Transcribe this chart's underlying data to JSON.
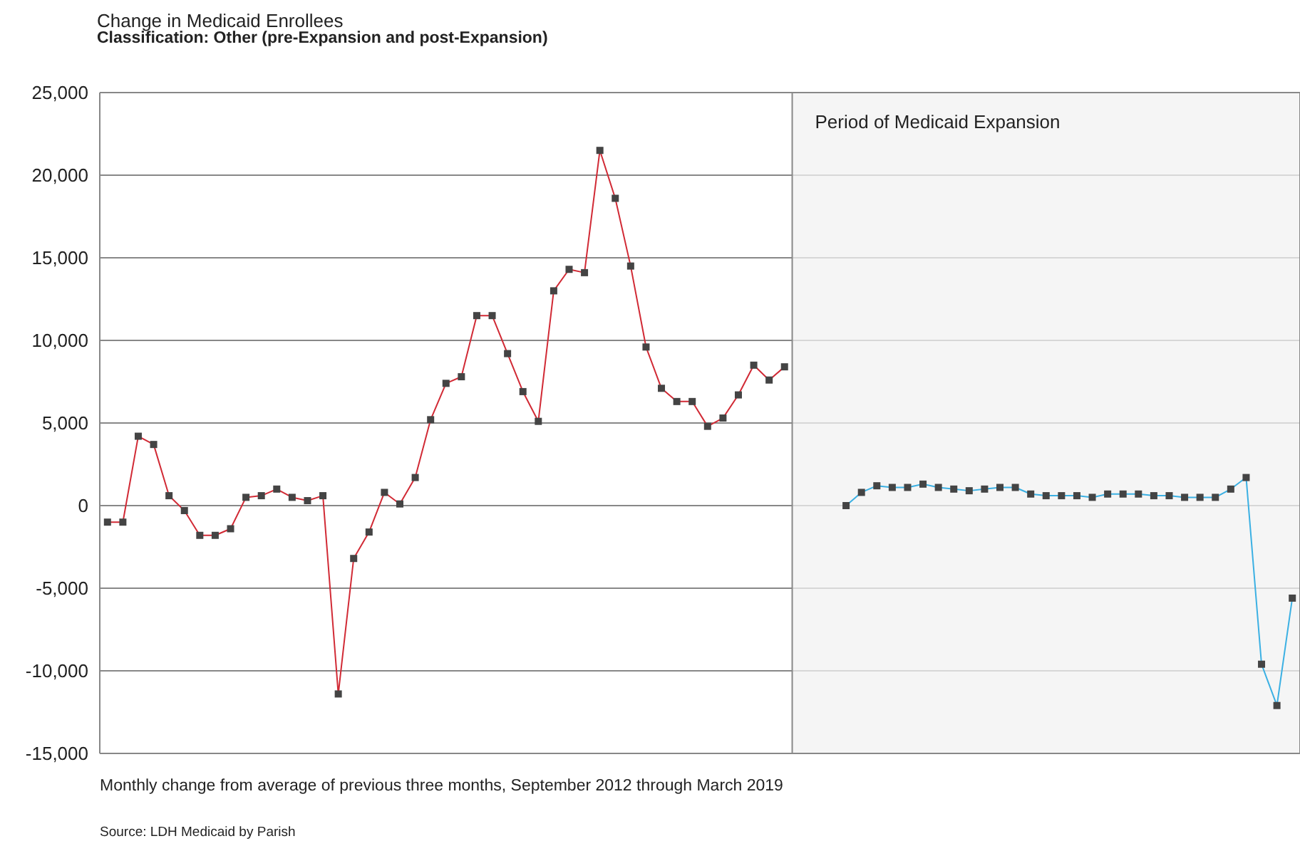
{
  "chart_data": {
    "type": "line",
    "title": "Change in Medicaid Enrollees",
    "subtitle": "Classification: Other (pre-Expansion and post-Expansion)",
    "xlabel": "Monthly change from average of previous three months, September 2012 through March 2019",
    "annotations": [
      "Period of Medicaid Expansion",
      "Source: LDH Medicaid by Parish"
    ],
    "categories": [
      null,
      null,
      null,
      null,
      null,
      null,
      null,
      null,
      null,
      null,
      null,
      null,
      null,
      null,
      null,
      null,
      null,
      null,
      null,
      null,
      null,
      null,
      null,
      null,
      null,
      null,
      null,
      null,
      null,
      null,
      null,
      null,
      null,
      null,
      null,
      null,
      null,
      null,
      null,
      null,
      null,
      null,
      null,
      null,
      null,
      null,
      null,
      null,
      null,
      null,
      null,
      null,
      null,
      null,
      null,
      null,
      null,
      null,
      null,
      null,
      null,
      null,
      null,
      null,
      null,
      null,
      null,
      null,
      null,
      null,
      null,
      null,
      null,
      null,
      null,
      null,
      null,
      null
    ],
    "series": [
      {
        "color": "#d12a35",
        "values": [
          -1000,
          -1000,
          4200,
          3700,
          600,
          -300,
          -1800,
          -1800,
          -1400,
          500,
          600,
          1000,
          500,
          300,
          600,
          -11400,
          -3200,
          -1600,
          800,
          100,
          1700,
          5200,
          7400,
          7800,
          11500,
          11500,
          9200,
          6900,
          5100,
          13000,
          14300,
          14100,
          21500,
          18600,
          14500,
          9600,
          7100,
          6300,
          6300,
          4800,
          5300,
          6700,
          8500,
          7600,
          8400,
          null,
          null,
          null,
          null,
          null,
          null,
          null,
          null,
          null,
          null,
          null,
          null,
          null,
          null,
          null,
          null,
          null,
          null,
          null,
          null,
          null,
          null,
          null,
          null,
          null,
          null,
          null,
          null,
          null,
          null,
          null,
          null,
          null
        ]
      },
      {
        "color": "#3bb0e3",
        "values": [
          null,
          null,
          null,
          null,
          null,
          null,
          null,
          null,
          null,
          null,
          null,
          null,
          null,
          null,
          null,
          null,
          null,
          null,
          null,
          null,
          null,
          null,
          null,
          null,
          null,
          null,
          null,
          null,
          null,
          null,
          null,
          null,
          null,
          null,
          null,
          null,
          null,
          null,
          null,
          null,
          null,
          null,
          null,
          null,
          null,
          null,
          null,
          null,
          0,
          800,
          1200,
          1100,
          1100,
          1300,
          1100,
          1000,
          900,
          1000,
          1100,
          1100,
          700,
          600,
          600,
          600,
          500,
          700,
          700,
          700,
          600,
          600,
          500,
          500,
          500,
          1000,
          1700,
          -9600,
          -12100,
          -5600
        ]
      }
    ],
    "ylim": [
      -15000,
      25000
    ],
    "yticks": [
      {
        "value": -15000,
        "label": "-15,000"
      },
      {
        "value": -10000,
        "label": "-10,000"
      },
      {
        "value": -5000,
        "label": "-5,000"
      },
      0,
      {
        "value": 5000,
        "label": "5,000"
      },
      {
        "value": 10000,
        "label": "10,000"
      },
      {
        "value": 15000,
        "label": "15,000"
      },
      {
        "value": 20000,
        "label": "20,000"
      },
      {
        "value": 25000,
        "label": "25,000"
      }
    ],
    "tick_labels": "y",
    "grid": "y",
    "legend": false,
    "marker": "square",
    "line_style": "solid"
  }
}
